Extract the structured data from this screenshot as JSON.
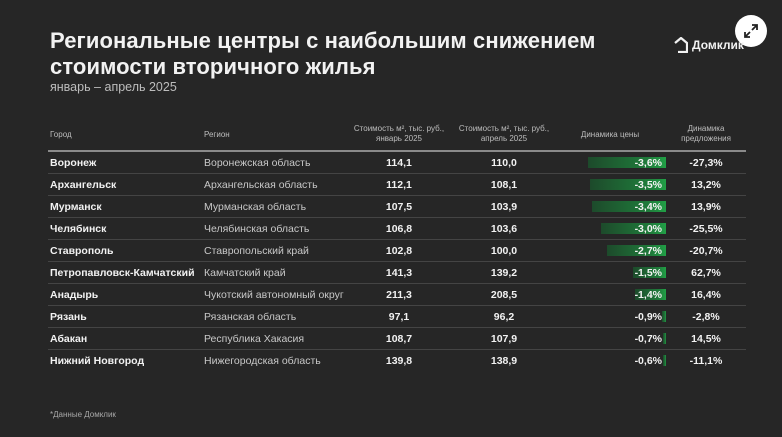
{
  "header": {
    "title_line1": "Региональные центры с наибольшим снижением",
    "title_line2": "стоимости вторичного жилья",
    "subtitle": "январь – апрель 2025",
    "logo_text": "Домклик",
    "expand_icon": "expand-arrows-icon"
  },
  "table": {
    "columns": {
      "city": "Город",
      "region": "Регион",
      "jan_line1": "Стоимость м², тыс. руб.,",
      "jan_line2": "январь 2025",
      "apr_line1": "Стоимость м², тыс. руб.,",
      "apr_line2": "апрель 2025",
      "price_dynamics": "Динамика цены",
      "supply_line1": "Динамика",
      "supply_line2": "предложения"
    },
    "rows": [
      {
        "city": "Воронеж",
        "region": "Воронежская область",
        "jan": "114,1",
        "apr": "110,0",
        "dyn": "-3,6%",
        "bar": 78,
        "supply": "-27,3%"
      },
      {
        "city": "Архангельск",
        "region": "Архангельская область",
        "jan": "112,1",
        "apr": "108,1",
        "dyn": "-3,5%",
        "bar": 76,
        "supply": "13,2%"
      },
      {
        "city": "Мурманск",
        "region": "Мурманская область",
        "jan": "107,5",
        "apr": "103,9",
        "dyn": "-3,4%",
        "bar": 74,
        "supply": "13,9%"
      },
      {
        "city": "Челябинск",
        "region": "Челябинская область",
        "jan": "106,8",
        "apr": "103,6",
        "dyn": "-3,0%",
        "bar": 65,
        "supply": "-25,5%"
      },
      {
        "city": "Ставрополь",
        "region": "Ставропольский край",
        "jan": "102,8",
        "apr": "100,0",
        "dyn": "-2,7%",
        "bar": 59,
        "supply": "-20,7%"
      },
      {
        "city": "Петропавловск-Камчатский",
        "region": "Камчатский край",
        "jan": "141,3",
        "apr": "139,2",
        "dyn": "-1,5%",
        "bar": 33,
        "supply": "62,7%"
      },
      {
        "city": "Анадырь",
        "region": "Чукотский автономный округ",
        "jan": "211,3",
        "apr": "208,5",
        "dyn": "-1,4%",
        "bar": 31,
        "supply": "16,4%"
      },
      {
        "city": "Рязань",
        "region": "Рязанская область",
        "jan": "97,1",
        "apr": "96,2",
        "dyn": "-0,9%",
        "bar": 4,
        "supply": "-2,8%"
      },
      {
        "city": "Абакан",
        "region": "Республика Хакасия",
        "jan": "108,7",
        "apr": "107,9",
        "dyn": "-0,7%",
        "bar": 3,
        "supply": "14,5%"
      },
      {
        "city": "Нижний Новгород",
        "region": "Нижегородская область",
        "jan": "139,8",
        "apr": "138,9",
        "dyn": "-0,6%",
        "bar": 3,
        "supply": "-11,1%"
      }
    ]
  },
  "colors": {
    "background": "#262626",
    "bar_green": "#21a046",
    "text": "#f2f2f2"
  },
  "footnote": "*Данные Домклик"
}
